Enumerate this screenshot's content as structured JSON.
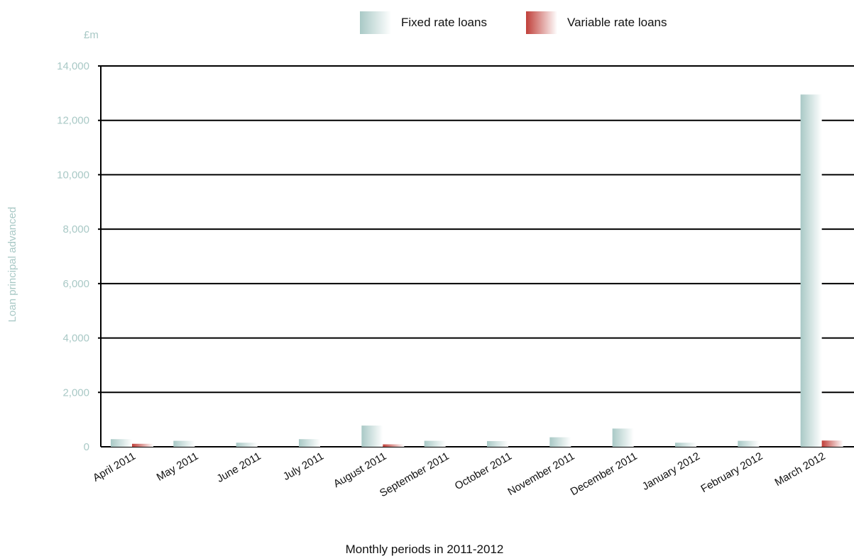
{
  "chart_data": {
    "type": "bar",
    "unit": "£m",
    "ylabel": "Loan principal advanced",
    "xlabel": "Monthly periods in 2011-2012",
    "ylim": [
      0,
      14000
    ],
    "yticks": [
      0,
      2000,
      4000,
      6000,
      8000,
      10000,
      12000,
      14000
    ],
    "ytick_labels": [
      "0",
      "2,000",
      "4,000",
      "6,000",
      "8,000",
      "10,000",
      "12,000",
      "14,000"
    ],
    "grid": true,
    "legend_position": "top",
    "categories": [
      "April 2011",
      "May 2011",
      "June 2011",
      "July 2011",
      "August 2011",
      "September 2011",
      "October 2011",
      "November 2011",
      "December 2011",
      "January 2012",
      "February 2012",
      "March 2012"
    ],
    "series": [
      {
        "name": "Fixed rate loans",
        "color": "#a9c9c6",
        "values": [
          280,
          220,
          150,
          280,
          780,
          220,
          210,
          350,
          670,
          150,
          220,
          12950
        ]
      },
      {
        "name": "Variable rate loans",
        "color": "#c0403a",
        "values": [
          110,
          0,
          0,
          0,
          90,
          0,
          0,
          0,
          0,
          0,
          0,
          230
        ]
      }
    ]
  }
}
